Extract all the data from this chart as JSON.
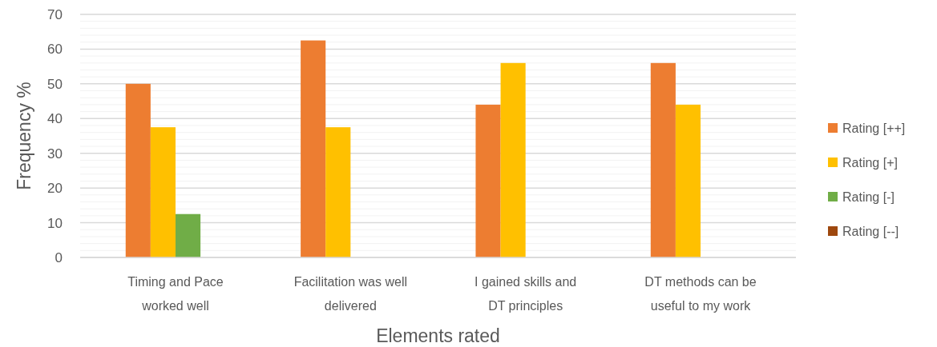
{
  "chart_data": {
    "type": "bar",
    "xlabel": "Elements rated",
    "ylabel": "Frequency %",
    "categories": [
      "Timing and Pace worked well",
      "Facilitation was well delivered",
      "I gained skills and DT principles",
      "DT methods can be useful to my work"
    ],
    "series": [
      {
        "name": "Rating [++]",
        "color": "#ed7d31",
        "values": [
          50,
          62.5,
          44,
          56
        ]
      },
      {
        "name": "Rating [+]",
        "color": "#ffc000",
        "values": [
          37.5,
          37.5,
          56,
          44
        ]
      },
      {
        "name": "Rating [-]",
        "color": "#70ad47",
        "values": [
          12.5,
          0,
          0,
          0
        ]
      },
      {
        "name": "Rating [--]",
        "color": "#9e480e",
        "values": [
          0,
          0,
          0,
          0
        ]
      }
    ],
    "ylim": [
      0,
      70
    ],
    "yticks": [
      0,
      {
        "value": 2,
        "label": null
      },
      {
        "value": 4,
        "label": null
      },
      {
        "value": 6,
        "label": null
      },
      {
        "value": 8,
        "label": null
      },
      10,
      {
        "value": 12,
        "label": null
      },
      {
        "value": 14,
        "label": null
      },
      {
        "value": 16,
        "label": null
      },
      {
        "value": 18,
        "label": null
      },
      20,
      {
        "value": 22,
        "label": null
      },
      {
        "value": 24,
        "label": null
      },
      {
        "value": 26,
        "label": null
      },
      {
        "value": 28,
        "label": null
      },
      30,
      {
        "value": 32,
        "label": null
      },
      {
        "value": 34,
        "label": null
      },
      {
        "value": 36,
        "label": null
      },
      {
        "value": 38,
        "label": null
      },
      40,
      {
        "value": 42,
        "label": null
      },
      {
        "value": 44,
        "label": null
      },
      {
        "value": 46,
        "label": null
      },
      {
        "value": 48,
        "label": null
      },
      50,
      {
        "value": 52,
        "label": null
      },
      {
        "value": 54,
        "label": null
      },
      {
        "value": 56,
        "label": null
      },
      {
        "value": 58,
        "label": null
      },
      60,
      {
        "value": 62,
        "label": null
      },
      {
        "value": 64,
        "label": null
      },
      {
        "value": 66,
        "label": null
      },
      {
        "value": 68,
        "label": null
      },
      70
    ],
    "grid": true,
    "legend": "right"
  }
}
